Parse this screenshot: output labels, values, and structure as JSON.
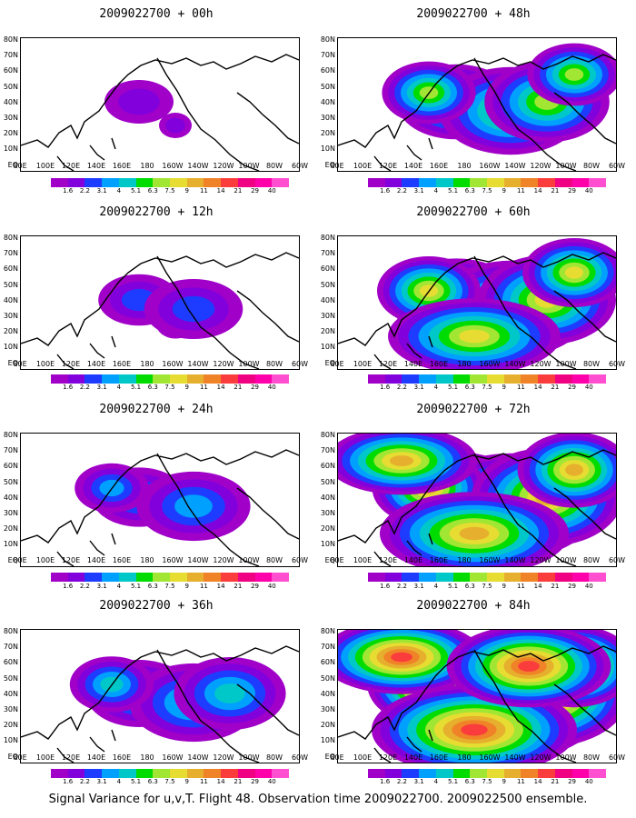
{
  "panels": [
    {
      "title": "2009022700 + 00h",
      "level": 0
    },
    {
      "title": "2009022700 + 12h",
      "level": 1
    },
    {
      "title": "2009022700 + 24h",
      "level": 2
    },
    {
      "title": "2009022700 + 36h",
      "level": 3
    },
    {
      "title": "2009022700 + 48h",
      "level": 4
    },
    {
      "title": "2009022700 + 60h",
      "level": 5
    },
    {
      "title": "2009022700 + 72h",
      "level": 6
    },
    {
      "title": "2009022700 + 84h",
      "level": 7
    }
  ],
  "lat_labels": [
    "80N",
    "70N",
    "60N",
    "50N",
    "40N",
    "30N",
    "20N",
    "10N",
    "EQ"
  ],
  "lon_labels": [
    "80E",
    "100E",
    "120E",
    "140E",
    "160E",
    "180",
    "160W",
    "140W",
    "120W",
    "100W",
    "80W",
    "60W"
  ],
  "colorbar": {
    "labels": [
      "1.6",
      "2.2",
      "3.1",
      "4",
      "5.1",
      "6.3",
      "7.5",
      "9",
      "11",
      "14",
      "21",
      "29",
      "40"
    ],
    "colors": [
      "#a000c8",
      "#8200dc",
      "#1e3cff",
      "#00a0ff",
      "#00c8c8",
      "#00dc00",
      "#a0e632",
      "#e6dc32",
      "#e6af2d",
      "#f08228",
      "#fa3c3c",
      "#f00082",
      "#ff00aa",
      "#ff4fd0"
    ]
  },
  "footer": "Signal Variance for u,v,T. Flight 48. Observation time 2009022700. 2009022500 ensemble."
}
